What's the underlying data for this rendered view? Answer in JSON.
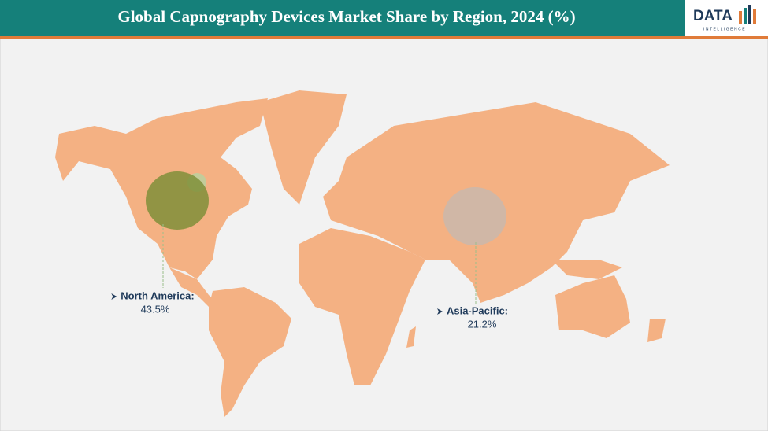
{
  "chart_data": {
    "type": "map",
    "title": "Global Capnography Devices Market Share by Region, 2024 (%)",
    "logo": {
      "text": "DATA",
      "subtext": "INTELLIGENCE"
    },
    "categories": [
      "North America:",
      "Asia-Pacific:"
    ],
    "values": [
      43.5,
      21.2
    ],
    "value_labels": [
      "43.5%",
      "21.2%"
    ],
    "colors": [
      "#7f8f3a",
      "#c9b8ad"
    ],
    "map_color": "#f4b183"
  }
}
